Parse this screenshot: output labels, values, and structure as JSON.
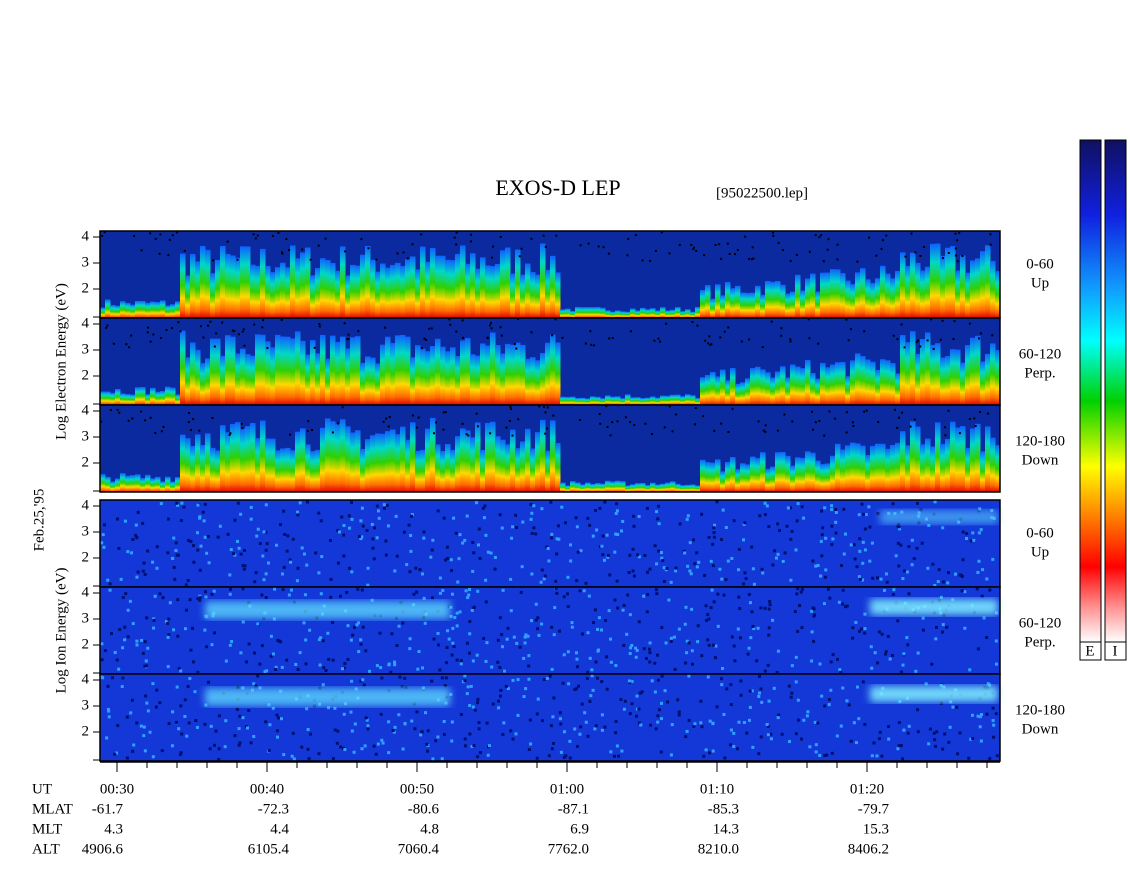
{
  "header": {
    "title": "EXOS-D LEP",
    "file": "[95022500.lep]"
  },
  "date": "Feb.25,'95",
  "panels": [
    {
      "label": "Log Electron Energy (eV)",
      "yticks": [
        4,
        3,
        2
      ]
    },
    {
      "label": "Log Ion Energy (eV)",
      "yticks": [
        4,
        3,
        2
      ]
    }
  ],
  "pitch_angles": [
    {
      "range": "0-60",
      "direction": "Up"
    },
    {
      "range": "60-120",
      "direction": "Perp."
    },
    {
      "range": "120-180",
      "direction": "Down"
    }
  ],
  "colorbar_labels": [
    "E",
    "I"
  ],
  "time_rows": [
    {
      "label": "UT",
      "values": [
        "00:30",
        "00:40",
        "00:50",
        "01:00",
        "01:10",
        "01:20"
      ]
    },
    {
      "label": "MLAT",
      "values": [
        "-61.7",
        "-72.3",
        "-80.6",
        "-87.1",
        "-85.3",
        "-79.7"
      ]
    },
    {
      "label": "MLT",
      "values": [
        "4.3",
        "4.4",
        "4.8",
        "6.9",
        "14.3",
        "15.3"
      ]
    },
    {
      "label": "ALT",
      "values": [
        "4906.6",
        "6105.4",
        "7060.4",
        "7762.0",
        "8210.0",
        "8406.2"
      ]
    }
  ]
}
